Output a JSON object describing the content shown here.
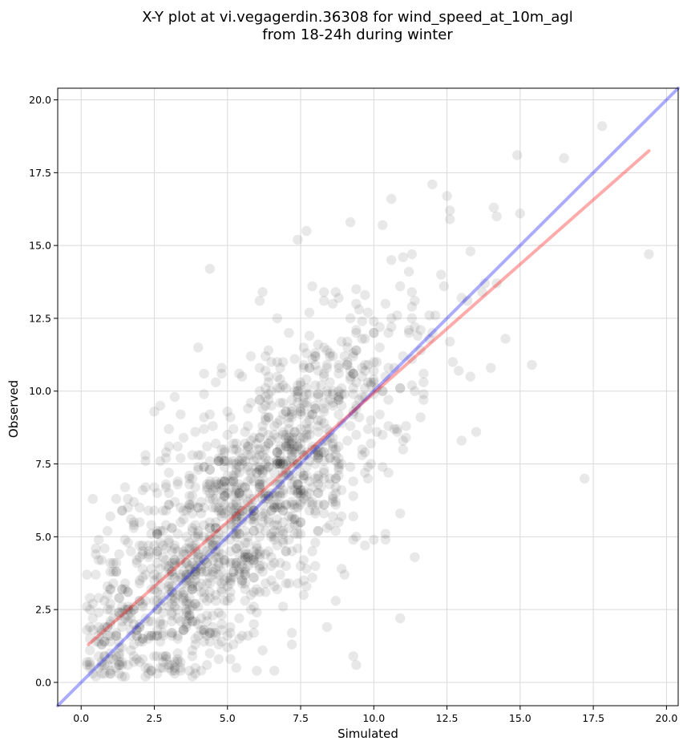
{
  "chart_data": {
    "type": "scatter",
    "title": "X-Y plot at vi.vegagerdin.36308 for wind_speed_at_10m_agl",
    "subtitle": "from 18-24h during winter",
    "xlabel": "Simulated",
    "ylabel": "Observed",
    "xlim": [
      -0.8,
      20.4
    ],
    "ylim": [
      -0.8,
      20.4
    ],
    "xticks": [
      "0.0",
      "2.5",
      "5.0",
      "7.5",
      "10.0",
      "12.5",
      "15.0",
      "17.5",
      "20.0"
    ],
    "yticks": [
      "0.0",
      "2.5",
      "5.0",
      "7.5",
      "10.0",
      "12.5",
      "15.0",
      "17.5",
      "20.0"
    ],
    "grid": true,
    "colors": {
      "points": "#000000",
      "identity_line": "#0000ff",
      "fit_line": "#ff0000"
    },
    "series": [
      {
        "kind": "points",
        "point_count": 1500,
        "highlighted_points": [
          [
            17.8,
            19.1
          ],
          [
            14.9,
            18.1
          ],
          [
            16.5,
            18.0
          ],
          [
            12.0,
            17.1
          ],
          [
            12.5,
            16.7
          ],
          [
            10.6,
            16.6
          ],
          [
            15.0,
            16.1
          ],
          [
            14.1,
            16.3
          ],
          [
            9.2,
            15.8
          ],
          [
            7.7,
            15.5
          ],
          [
            7.4,
            15.2
          ],
          [
            19.4,
            14.7
          ],
          [
            4.4,
            14.2
          ],
          [
            17.2,
            7.0
          ],
          [
            15.4,
            10.9
          ],
          [
            14.5,
            11.8
          ],
          [
            10.9,
            2.2
          ],
          [
            11.4,
            4.3
          ],
          [
            9.3,
            0.9
          ],
          [
            9.4,
            0.6
          ],
          [
            6.6,
            0.4
          ],
          [
            5.3,
            0.5
          ],
          [
            0.5,
            0.2
          ],
          [
            0.2,
            2.6
          ],
          [
            0.5,
            4.4
          ],
          [
            13.5,
            8.6
          ],
          [
            12.9,
            10.7
          ],
          [
            14.2,
            13.7
          ],
          [
            12.6,
            16.2
          ],
          [
            12.6,
            15.9
          ]
        ]
      },
      {
        "kind": "line",
        "role": "identity",
        "points": [
          [
            -0.8,
            -0.8
          ],
          [
            20.4,
            20.4
          ]
        ]
      },
      {
        "kind": "line",
        "role": "fit",
        "points": [
          [
            0.25,
            1.3
          ],
          [
            19.4,
            18.25
          ]
        ]
      }
    ]
  }
}
